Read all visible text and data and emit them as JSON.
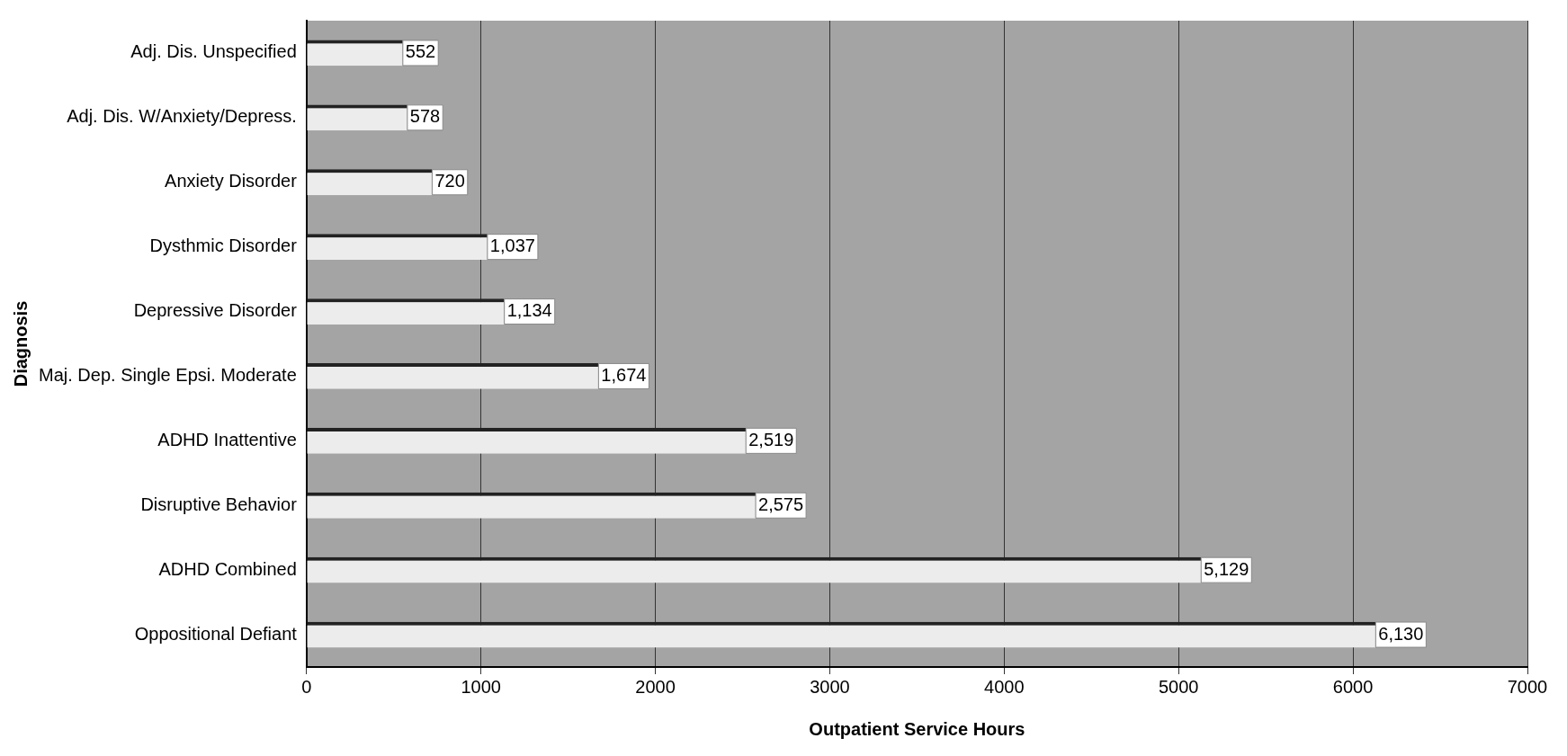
{
  "chart_data": {
    "type": "bar",
    "orientation": "horizontal",
    "xlabel": "Outpatient Service Hours",
    "ylabel": "Diagnosis",
    "categories": [
      "Adj. Dis. Unspecified",
      "Adj. Dis. W/Anxiety/Depress.",
      "Anxiety Disorder",
      "Dysthmic Disorder",
      "Depressive Disorder",
      "Maj. Dep. Single Epsi. Moderate",
      "ADHD Inattentive",
      "Disruptive Behavior",
      "ADHD Combined",
      "Oppositional Defiant"
    ],
    "values": [
      552,
      578,
      720,
      1037,
      1134,
      1674,
      2519,
      2575,
      5129,
      6130
    ],
    "value_labels": [
      "552",
      "578",
      "720",
      "1,037",
      "1,134",
      "1,674",
      "2,519",
      "2,575",
      "5,129",
      "6,130"
    ],
    "color": "#ececec",
    "xlim": [
      0,
      7000
    ],
    "xticks": [
      0,
      1000,
      2000,
      3000,
      4000,
      5000,
      6000,
      7000
    ],
    "grid": "x",
    "legend": false
  }
}
